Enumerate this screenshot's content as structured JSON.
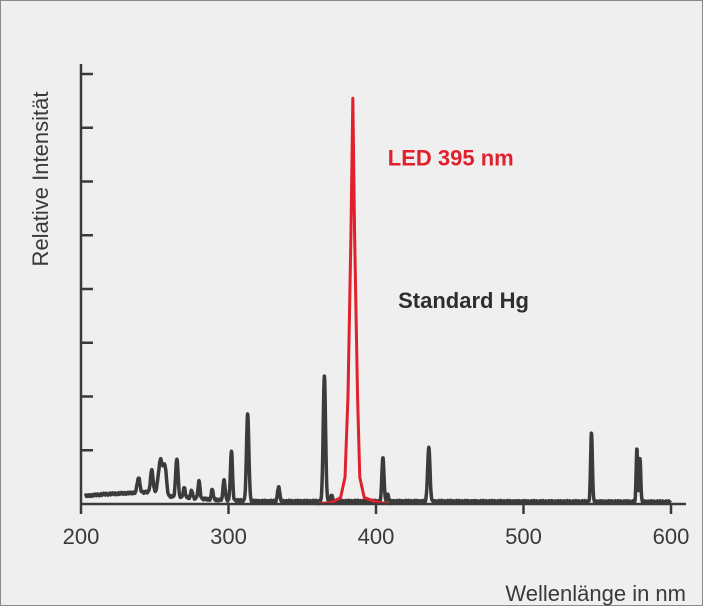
{
  "chart_data": {
    "type": "line",
    "title": "",
    "xlabel": "Wellenlänge in nm",
    "ylabel": "Relative Intensität",
    "xlim": [
      200,
      600
    ],
    "ylim": [
      0,
      8
    ],
    "x_ticks": [
      200,
      300,
      400,
      500,
      600
    ],
    "y_tick_count": 8,
    "y_tick_labels": false,
    "grid": false,
    "legend": "none",
    "colors": {
      "hg": "#3b3b3b",
      "led": "#e0202c",
      "axis": "#3a3a3a",
      "background": "#efefef"
    },
    "series": [
      {
        "name": "Standard Hg",
        "color": "#3b3b3b",
        "baseline": [
          [
            203,
            0.15
          ],
          [
            215,
            0.18
          ],
          [
            230,
            0.2
          ],
          [
            245,
            0.22
          ],
          [
            260,
            0.14
          ],
          [
            290,
            0.08
          ],
          [
            320,
            0.05
          ],
          [
            400,
            0.05
          ],
          [
            600,
            0.04
          ]
        ],
        "peaks": [
          {
            "x": 239,
            "y": 0.28,
            "w": 0.9
          },
          {
            "x": 248,
            "y": 0.42,
            "w": 0.9
          },
          {
            "x": 254,
            "y": 0.65,
            "w": 1.5
          },
          {
            "x": 257,
            "y": 0.48,
            "w": 1.0
          },
          {
            "x": 265,
            "y": 0.72,
            "w": 0.8
          },
          {
            "x": 270,
            "y": 0.18,
            "w": 0.7
          },
          {
            "x": 275,
            "y": 0.15,
            "w": 0.6
          },
          {
            "x": 280,
            "y": 0.32,
            "w": 0.7
          },
          {
            "x": 289,
            "y": 0.2,
            "w": 0.6
          },
          {
            "x": 297,
            "y": 0.38,
            "w": 0.7
          },
          {
            "x": 302,
            "y": 0.92,
            "w": 0.7
          },
          {
            "x": 313,
            "y": 1.62,
            "w": 0.8
          },
          {
            "x": 334,
            "y": 0.28,
            "w": 0.7
          },
          {
            "x": 365,
            "y": 2.32,
            "w": 0.8
          },
          {
            "x": 370,
            "y": 0.12,
            "w": 0.6
          },
          {
            "x": 404.7,
            "y": 0.82,
            "w": 0.7
          },
          {
            "x": 408,
            "y": 0.12,
            "w": 0.6
          },
          {
            "x": 435.8,
            "y": 1.0,
            "w": 0.8
          },
          {
            "x": 546.1,
            "y": 1.28,
            "w": 0.6
          },
          {
            "x": 576.9,
            "y": 1.0,
            "w": 0.5
          },
          {
            "x": 579,
            "y": 0.82,
            "w": 0.5
          }
        ]
      },
      {
        "name": "LED 395 nm",
        "color": "#e0202c",
        "points": [
          [
            360,
            0.0
          ],
          [
            370,
            0.03
          ],
          [
            376,
            0.12
          ],
          [
            379,
            0.5
          ],
          [
            381,
            2.0
          ],
          [
            383,
            5.0
          ],
          [
            384.3,
            7.55
          ],
          [
            385.5,
            5.0
          ],
          [
            387.5,
            2.0
          ],
          [
            389,
            0.5
          ],
          [
            392,
            0.12
          ],
          [
            400,
            0.04
          ],
          [
            410,
            0.0
          ]
        ]
      }
    ],
    "annotations": [
      {
        "text": "LED 395 nm",
        "x": 408,
        "y": 6.3,
        "color": "#e0202c"
      },
      {
        "text": "Standard Hg",
        "x": 415,
        "y": 3.65,
        "color": "#2e2e2e"
      }
    ]
  }
}
